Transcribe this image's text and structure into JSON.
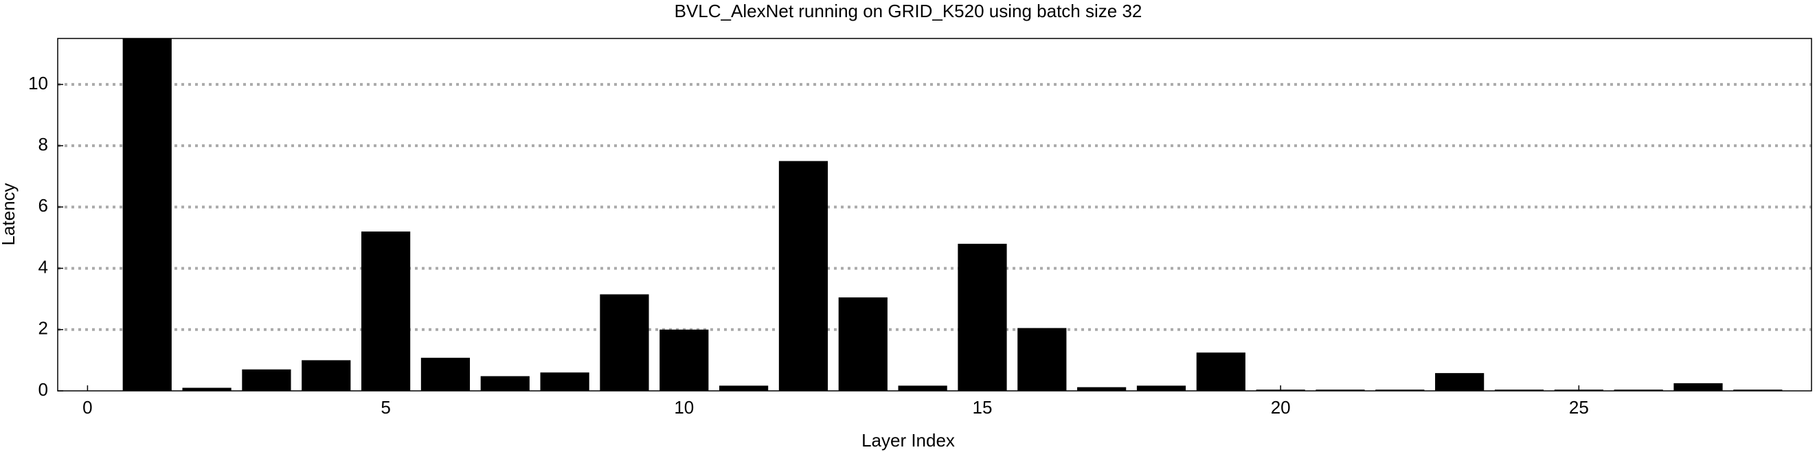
{
  "chart_data": {
    "type": "bar",
    "title": "BVLC_AlexNet running on GRID_K520 using batch size 32",
    "xlabel": "Layer Index",
    "ylabel": "Latency",
    "x": [
      1,
      2,
      3,
      4,
      5,
      6,
      7,
      8,
      9,
      10,
      11,
      12,
      13,
      14,
      15,
      16,
      17,
      18,
      19,
      20,
      21,
      22,
      23,
      24,
      25,
      26,
      27,
      28
    ],
    "values": [
      11.5,
      0.1,
      0.7,
      1.0,
      5.2,
      1.08,
      0.48,
      0.6,
      3.15,
      2.0,
      0.17,
      7.5,
      3.05,
      0.17,
      4.8,
      2.05,
      0.12,
      0.17,
      1.25,
      0.04,
      0.04,
      0.04,
      0.58,
      0.04,
      0.04,
      0.04,
      0.25,
      0.04
    ],
    "color": "#000000",
    "xlim": [
      -0.5,
      28.9
    ],
    "xticks": [
      0,
      5,
      10,
      15,
      20,
      25
    ],
    "ylim": [
      0,
      11.5
    ],
    "yticks": [
      0,
      2,
      4,
      6,
      8,
      10
    ],
    "grid": true
  }
}
